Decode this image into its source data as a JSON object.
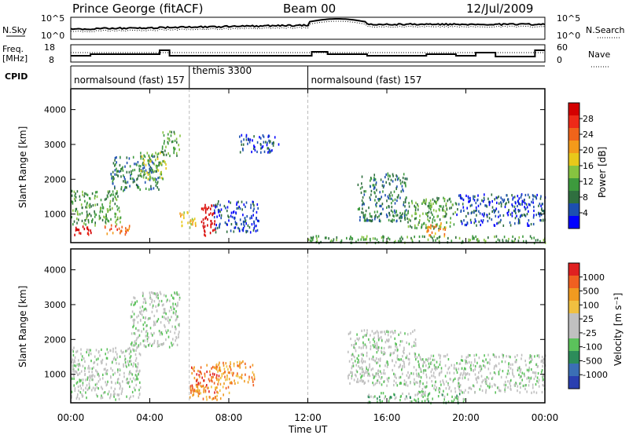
{
  "header": {
    "title": "Prince George (fitACF)",
    "beam": "Beam 00",
    "date": "12/Jul/2009"
  },
  "noise_panel": {
    "left_label": "N.Sky",
    "left_ticks": [
      "10^5",
      "10^0"
    ],
    "right_label": "N.Search",
    "right_ticks": [
      "10^5",
      "10^0"
    ]
  },
  "freq_panel": {
    "left_label_line1": "Freq.",
    "left_label_line2": "[MHz]",
    "left_ticks": [
      "18",
      "8"
    ],
    "right_label": "Nave",
    "right_ticks": [
      "60",
      "0"
    ]
  },
  "cpid": {
    "label": "CPID",
    "segments": [
      {
        "label": "normalsound (fast) 157",
        "start_hour": 0,
        "end_hour": 6.0
      },
      {
        "label": "themis 3300",
        "start_hour": 6.0,
        "end_hour": 12.0
      },
      {
        "label": "normalsound (fast) 157",
        "start_hour": 12.0,
        "end_hour": 24.0
      }
    ]
  },
  "x_axis": {
    "label": "Time UT",
    "ticks": [
      "00:00",
      "04:00",
      "08:00",
      "12:00",
      "16:00",
      "20:00",
      "00:00"
    ],
    "tick_hours": [
      0,
      4,
      8,
      12,
      16,
      20,
      24
    ]
  },
  "power_panel": {
    "ylabel": "Slant Range [km]",
    "yticks": [
      "4000",
      "3000",
      "2000",
      "1000"
    ],
    "ytick_values": [
      4000,
      3000,
      2000,
      1000
    ],
    "colorbar_label": "Power [dB]",
    "colorbar_ticks": [
      "28",
      "24",
      "20",
      "16",
      "12",
      "8",
      "4"
    ],
    "colors": [
      "#0000ff",
      "#1c4fb0",
      "#2f6f3f",
      "#3d9a3d",
      "#86c340",
      "#e8c81a",
      "#f39a1a",
      "#f0641a",
      "#ee2a18",
      "#d40000"
    ]
  },
  "velocity_panel": {
    "ylabel": "Slant Range [km]",
    "yticks": [
      "4000",
      "3000",
      "2000",
      "1000"
    ],
    "ytick_values": [
      4000,
      3000,
      2000,
      1000
    ],
    "colorbar_label": "Velocity [m s⁻¹]",
    "colorbar_ticks": [
      "1000",
      "500",
      "100",
      "25",
      "-25",
      "-100",
      "-500",
      "-1000"
    ],
    "colors": [
      "#2a3fb0",
      "#3b6fb5",
      "#2c8c5a",
      "#5bc25b",
      "#c0c0c0",
      "#c0c0c0",
      "#f0c040",
      "#f09a20",
      "#f06020",
      "#e02020"
    ]
  },
  "chart_data": {
    "type": "heatmap",
    "x_range_hours": [
      0,
      24
    ],
    "y_range_km": [
      180,
      4600
    ],
    "dashed_vertical_hours": [
      6.0,
      12.0
    ],
    "power_regions": [
      {
        "t0": 0.0,
        "t1": 1.0,
        "r0": 400,
        "r1": 700,
        "level": 9
      },
      {
        "t0": 1.7,
        "t1": 3.0,
        "r0": 450,
        "r1": 750,
        "level": 7
      },
      {
        "t0": 6.5,
        "t1": 7.3,
        "r0": 400,
        "r1": 1300,
        "level": 9
      },
      {
        "t0": 5.5,
        "t1": 6.3,
        "r0": 600,
        "r1": 1100,
        "level": 5
      },
      {
        "t0": 0.0,
        "t1": 2.5,
        "r0": 700,
        "r1": 1700,
        "level": 3
      },
      {
        "t0": 2.0,
        "t1": 4.5,
        "r0": 1700,
        "r1": 2700,
        "level": 2
      },
      {
        "t0": 4.5,
        "t1": 5.5,
        "r0": 2700,
        "r1": 3400,
        "level": 3
      },
      {
        "t0": 3.5,
        "t1": 4.8,
        "r0": 2000,
        "r1": 2800,
        "level": 4
      },
      {
        "t0": 7.2,
        "t1": 9.5,
        "r0": 500,
        "r1": 1400,
        "level": 1
      },
      {
        "t0": 8.5,
        "t1": 10.5,
        "r0": 2800,
        "r1": 3300,
        "level": 1
      },
      {
        "t0": 14.5,
        "t1": 17.0,
        "r0": 800,
        "r1": 2200,
        "level": 2
      },
      {
        "t0": 17.0,
        "t1": 19.5,
        "r0": 600,
        "r1": 1500,
        "level": 3
      },
      {
        "t0": 18.0,
        "t1": 19.0,
        "r0": 400,
        "r1": 800,
        "level": 6
      },
      {
        "t0": 19.5,
        "t1": 24.0,
        "r0": 700,
        "r1": 1600,
        "level": 1
      },
      {
        "t0": 12.0,
        "t1": 24.0,
        "r0": 200,
        "r1": 400,
        "level": 3
      }
    ],
    "velocity_regions": [
      {
        "t0": 0.0,
        "t1": 3.5,
        "r0": 300,
        "r1": 1800,
        "level": 4
      },
      {
        "t0": 3.0,
        "t1": 5.5,
        "r0": 1800,
        "r1": 3400,
        "level": 4
      },
      {
        "t0": 6.0,
        "t1": 7.5,
        "r0": 500,
        "r1": 1300,
        "level": 8
      },
      {
        "t0": 7.3,
        "t1": 9.3,
        "r0": 700,
        "r1": 1400,
        "level": 7
      },
      {
        "t0": 6.0,
        "t1": 8.0,
        "r0": 300,
        "r1": 700,
        "level": 7
      },
      {
        "t0": 14.0,
        "t1": 17.5,
        "r0": 700,
        "r1": 2300,
        "level": 4
      },
      {
        "t0": 17.5,
        "t1": 24.0,
        "r0": 500,
        "r1": 1600,
        "level": 4
      },
      {
        "t0": 15.0,
        "t1": 20.0,
        "r0": 200,
        "r1": 500,
        "level": 3
      }
    ]
  }
}
